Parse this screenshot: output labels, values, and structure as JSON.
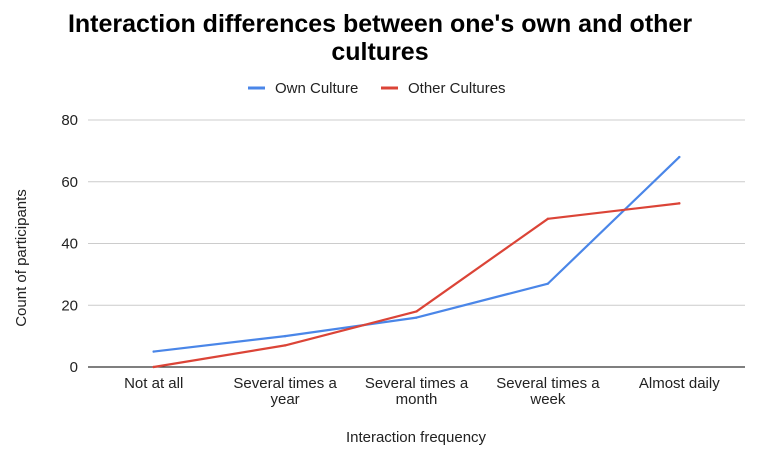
{
  "chart_data": {
    "type": "line",
    "title_lines": [
      "Interaction differences between one's own and other",
      "cultures"
    ],
    "xlabel": "Interaction frequency",
    "ylabel": "Count of participants",
    "categories": [
      [
        "Not at all"
      ],
      [
        "Several times a",
        "year"
      ],
      [
        "Several times a",
        "month"
      ],
      [
        "Several times a",
        "week"
      ],
      [
        "Almost daily"
      ]
    ],
    "series": [
      {
        "name": "Own Culture",
        "color": "#4a86e8",
        "values": [
          5,
          10,
          16,
          27,
          68
        ]
      },
      {
        "name": "Other Cultures",
        "color": "#db4437",
        "values": [
          0,
          7,
          18,
          48,
          53
        ]
      }
    ],
    "ylim": [
      0,
      80
    ],
    "yticks": [
      0,
      20,
      40,
      60,
      80
    ],
    "grid": true,
    "legend_position": "top"
  }
}
